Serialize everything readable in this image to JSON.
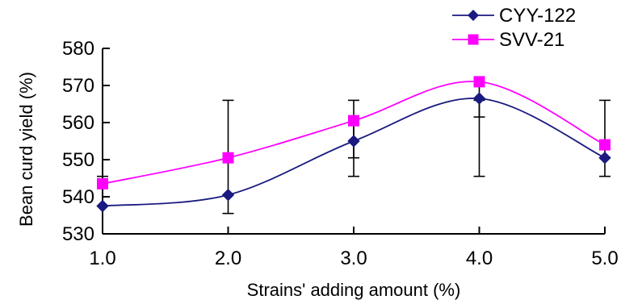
{
  "chart_data": {
    "type": "line",
    "title": "",
    "xlabel": "Strains' adding amount (%)",
    "ylabel": "Bean curd yield (%)",
    "x": [
      1.0,
      2.0,
      3.0,
      4.0,
      5.0
    ],
    "x_tick_labels": [
      "1.0",
      "2.0",
      "3.0",
      "4.0",
      "5.0"
    ],
    "xlim": [
      1.0,
      5.0
    ],
    "ylim": [
      530,
      580
    ],
    "y_ticks": [
      530,
      540,
      550,
      560,
      570,
      580
    ],
    "y_tick_labels": [
      "530",
      "540",
      "550",
      "560",
      "570",
      "580"
    ],
    "grid": false,
    "legend_position": "top-right",
    "smooth": true,
    "series": [
      {
        "name": "CYY-122",
        "color": "#1a1a80",
        "marker": "diamond",
        "values": [
          537.5,
          540.5,
          555,
          566.5,
          550.5
        ],
        "error_low": [
          537.5,
          535.5,
          545.5,
          545.5,
          545.5
        ],
        "error_high": [
          545.5,
          566,
          566,
          566,
          566
        ]
      },
      {
        "name": "SVV-21",
        "color": "#ff00ff",
        "marker": "square",
        "values": [
          543.5,
          550.5,
          560.5,
          571,
          554
        ],
        "error_low": [
          543.5,
          550.5,
          550.5,
          561.5,
          554
        ],
        "error_high": [
          543.5,
          550.5,
          560.5,
          571,
          554
        ]
      }
    ]
  }
}
